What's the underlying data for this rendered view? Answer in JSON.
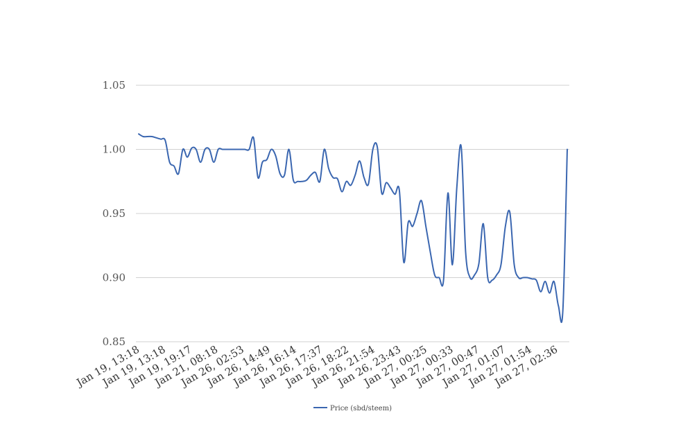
{
  "chart_data": {
    "type": "line",
    "title": "",
    "xlabel": "",
    "ylabel": "",
    "ylim": [
      0.85,
      1.05
    ],
    "y_ticks": [
      "0.85",
      "0.90",
      "0.95",
      "1.00",
      "1.05"
    ],
    "x_tick_labels": [
      "Jan 19, 13:18",
      "Jan 19, 13:18",
      "Jan 19, 19:17",
      "Jan 21, 08:18",
      "Jan 26, 02:53",
      "Jan 26, 14:49",
      "Jan 26, 16:14",
      "Jan 26, 17:37",
      "Jan 26, 18:22",
      "Jan 26, 21:54",
      "Jan 26, 23:43",
      "Jan 27, 00:25",
      "Jan 27, 00:33",
      "Jan 27, 00:47",
      "Jan 27, 01:07",
      "Jan 27, 01:54",
      "Jan 27, 02:36"
    ],
    "grid": true,
    "legend_position": "bottom-center",
    "series": [
      {
        "name": "Price (sbd/steem)",
        "color": "#3a66b0",
        "values": [
          1.012,
          1.01,
          1.01,
          1.01,
          1.009,
          1.008,
          1.007,
          0.99,
          0.987,
          0.981,
          1.0,
          0.994,
          1.001,
          1.0,
          0.99,
          1.0,
          1.0,
          0.99,
          1.0,
          1.0,
          1.0,
          1.0,
          1.0,
          1.0,
          1.0,
          1.0,
          1.009,
          0.978,
          0.99,
          0.992,
          1.0,
          0.995,
          0.981,
          0.98,
          1.0,
          0.976,
          0.975,
          0.975,
          0.976,
          0.98,
          0.982,
          0.975,
          1.0,
          0.985,
          0.978,
          0.977,
          0.967,
          0.975,
          0.972,
          0.98,
          0.991,
          0.978,
          0.973,
          1.0,
          1.002,
          0.966,
          0.974,
          0.97,
          0.965,
          0.968,
          0.912,
          0.943,
          0.94,
          0.95,
          0.96,
          0.94,
          0.92,
          0.902,
          0.9,
          0.898,
          0.966,
          0.91,
          0.97,
          1.002,
          0.92,
          0.9,
          0.902,
          0.911,
          0.942,
          0.9,
          0.898,
          0.902,
          0.91,
          0.94,
          0.951,
          0.91,
          0.9,
          0.9,
          0.9,
          0.899,
          0.898,
          0.889,
          0.897,
          0.888,
          0.897,
          0.878,
          0.874,
          1.0
        ]
      }
    ]
  }
}
